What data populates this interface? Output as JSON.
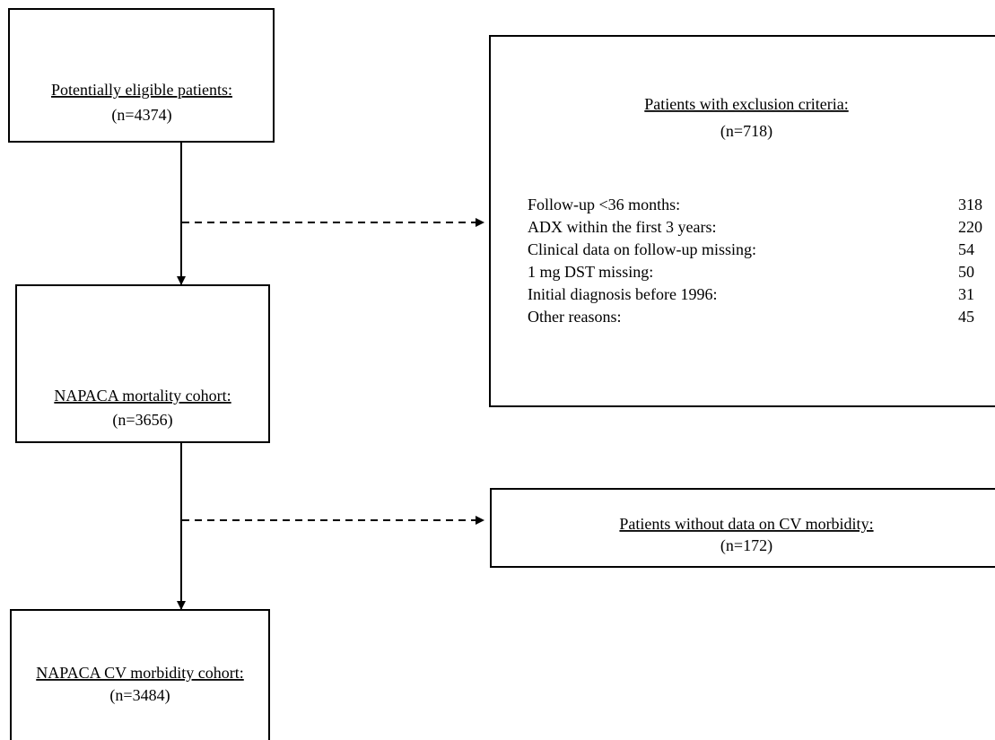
{
  "nodes": [
    {
      "label": "Potentially eligible patients:",
      "n": "(n=4374)"
    },
    {
      "label": "NAPACA mortality cohort:",
      "n": "(n=3656)"
    },
    {
      "label": "NAPACA CV morbidity cohort:",
      "n": "(n=3484)"
    }
  ],
  "exclusions": [
    {
      "label": "Patients with exclusion criteria:",
      "n": "(n=718)",
      "reasons": [
        {
          "reason": "Follow-up <36 months:",
          "count": "318"
        },
        {
          "reason": "ADX within the first 3 years:",
          "count": "220"
        },
        {
          "reason": "Clinical data on follow-up missing:",
          "count": "54"
        },
        {
          "reason": "1 mg DST missing:",
          "count": "50"
        },
        {
          "reason": "Initial diagnosis before 1996:",
          "count": "31"
        },
        {
          "reason": "Other reasons:",
          "count": "45"
        }
      ]
    },
    {
      "label": "Patients without data on CV morbidity:",
      "n": "(n=172)"
    }
  ]
}
